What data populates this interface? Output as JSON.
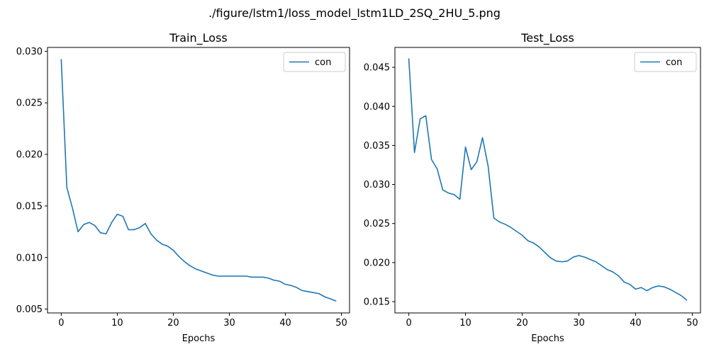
{
  "figure_title": "./figure/lstm1/loss_model_lstm1LD_2SQ_2HU_5.png",
  "chart_data": [
    {
      "type": "line",
      "title": "Train_Loss",
      "xlabel": "Epochs",
      "ylabel": "",
      "xlim": [
        -2.45,
        51.45
      ],
      "ylim": [
        0.00463,
        0.03037
      ],
      "xticks": [
        0,
        10,
        20,
        30,
        40,
        50
      ],
      "xtick_labels": [
        "0",
        "10",
        "20",
        "30",
        "40",
        "50"
      ],
      "yticks": [
        0.005,
        0.01,
        0.015,
        0.02,
        0.025,
        0.03
      ],
      "ytick_labels": [
        "0.005",
        "0.010",
        "0.015",
        "0.020",
        "0.025",
        "0.030"
      ],
      "grid": false,
      "legend": "top-right",
      "series": [
        {
          "name": "con",
          "color": "#1f77b4",
          "x": [
            0,
            1,
            2,
            3,
            4,
            5,
            6,
            7,
            8,
            9,
            10,
            11,
            12,
            13,
            14,
            15,
            16,
            17,
            18,
            19,
            20,
            21,
            22,
            23,
            24,
            25,
            26,
            27,
            28,
            29,
            30,
            31,
            32,
            33,
            34,
            35,
            36,
            37,
            38,
            39,
            40,
            41,
            42,
            43,
            44,
            45,
            46,
            47,
            48,
            49
          ],
          "y": [
            0.0292,
            0.0168,
            0.0148,
            0.0125,
            0.0132,
            0.0134,
            0.0131,
            0.0124,
            0.0123,
            0.0134,
            0.0142,
            0.014,
            0.0127,
            0.0127,
            0.0129,
            0.0133,
            0.0123,
            0.0117,
            0.0113,
            0.0111,
            0.0107,
            0.0101,
            0.0096,
            0.0092,
            0.0089,
            0.0087,
            0.0085,
            0.0083,
            0.0082,
            0.0082,
            0.0082,
            0.0082,
            0.0082,
            0.0082,
            0.0081,
            0.0081,
            0.0081,
            0.008,
            0.0078,
            0.0077,
            0.0074,
            0.0073,
            0.0071,
            0.0068,
            0.0067,
            0.0066,
            0.0065,
            0.0062,
            0.006,
            0.0058
          ]
        }
      ]
    },
    {
      "type": "line",
      "title": "Test_Loss",
      "xlabel": "Epochs",
      "ylabel": "",
      "xlim": [
        -2.45,
        51.45
      ],
      "ylim": [
        0.01355,
        0.04755
      ],
      "xticks": [
        0,
        10,
        20,
        30,
        40,
        50
      ],
      "xtick_labels": [
        "0",
        "10",
        "20",
        "30",
        "40",
        "50"
      ],
      "yticks": [
        0.015,
        0.02,
        0.025,
        0.03,
        0.035,
        0.04,
        0.045
      ],
      "ytick_labels": [
        "0.015",
        "0.020",
        "0.025",
        "0.030",
        "0.035",
        "0.040",
        "0.045"
      ],
      "grid": false,
      "legend": "top-right",
      "series": [
        {
          "name": "con",
          "color": "#1f77b4",
          "x": [
            0,
            1,
            2,
            3,
            4,
            5,
            6,
            7,
            8,
            9,
            10,
            11,
            12,
            13,
            14,
            15,
            16,
            17,
            18,
            19,
            20,
            21,
            22,
            23,
            24,
            25,
            26,
            27,
            28,
            29,
            30,
            31,
            32,
            33,
            34,
            35,
            36,
            37,
            38,
            39,
            40,
            41,
            42,
            43,
            44,
            45,
            46,
            47,
            48,
            49
          ],
          "y": [
            0.0461,
            0.0341,
            0.0384,
            0.0388,
            0.0332,
            0.032,
            0.0293,
            0.0289,
            0.0287,
            0.0281,
            0.0348,
            0.0319,
            0.0329,
            0.036,
            0.0323,
            0.0257,
            0.0252,
            0.0249,
            0.0245,
            0.024,
            0.0235,
            0.0228,
            0.0225,
            0.022,
            0.0213,
            0.0206,
            0.0202,
            0.0201,
            0.0202,
            0.0207,
            0.0209,
            0.0207,
            0.0204,
            0.0201,
            0.0196,
            0.0191,
            0.0188,
            0.0183,
            0.0175,
            0.0172,
            0.0166,
            0.0168,
            0.0164,
            0.0168,
            0.017,
            0.0169,
            0.0166,
            0.0162,
            0.0158,
            0.0152
          ]
        }
      ]
    }
  ]
}
